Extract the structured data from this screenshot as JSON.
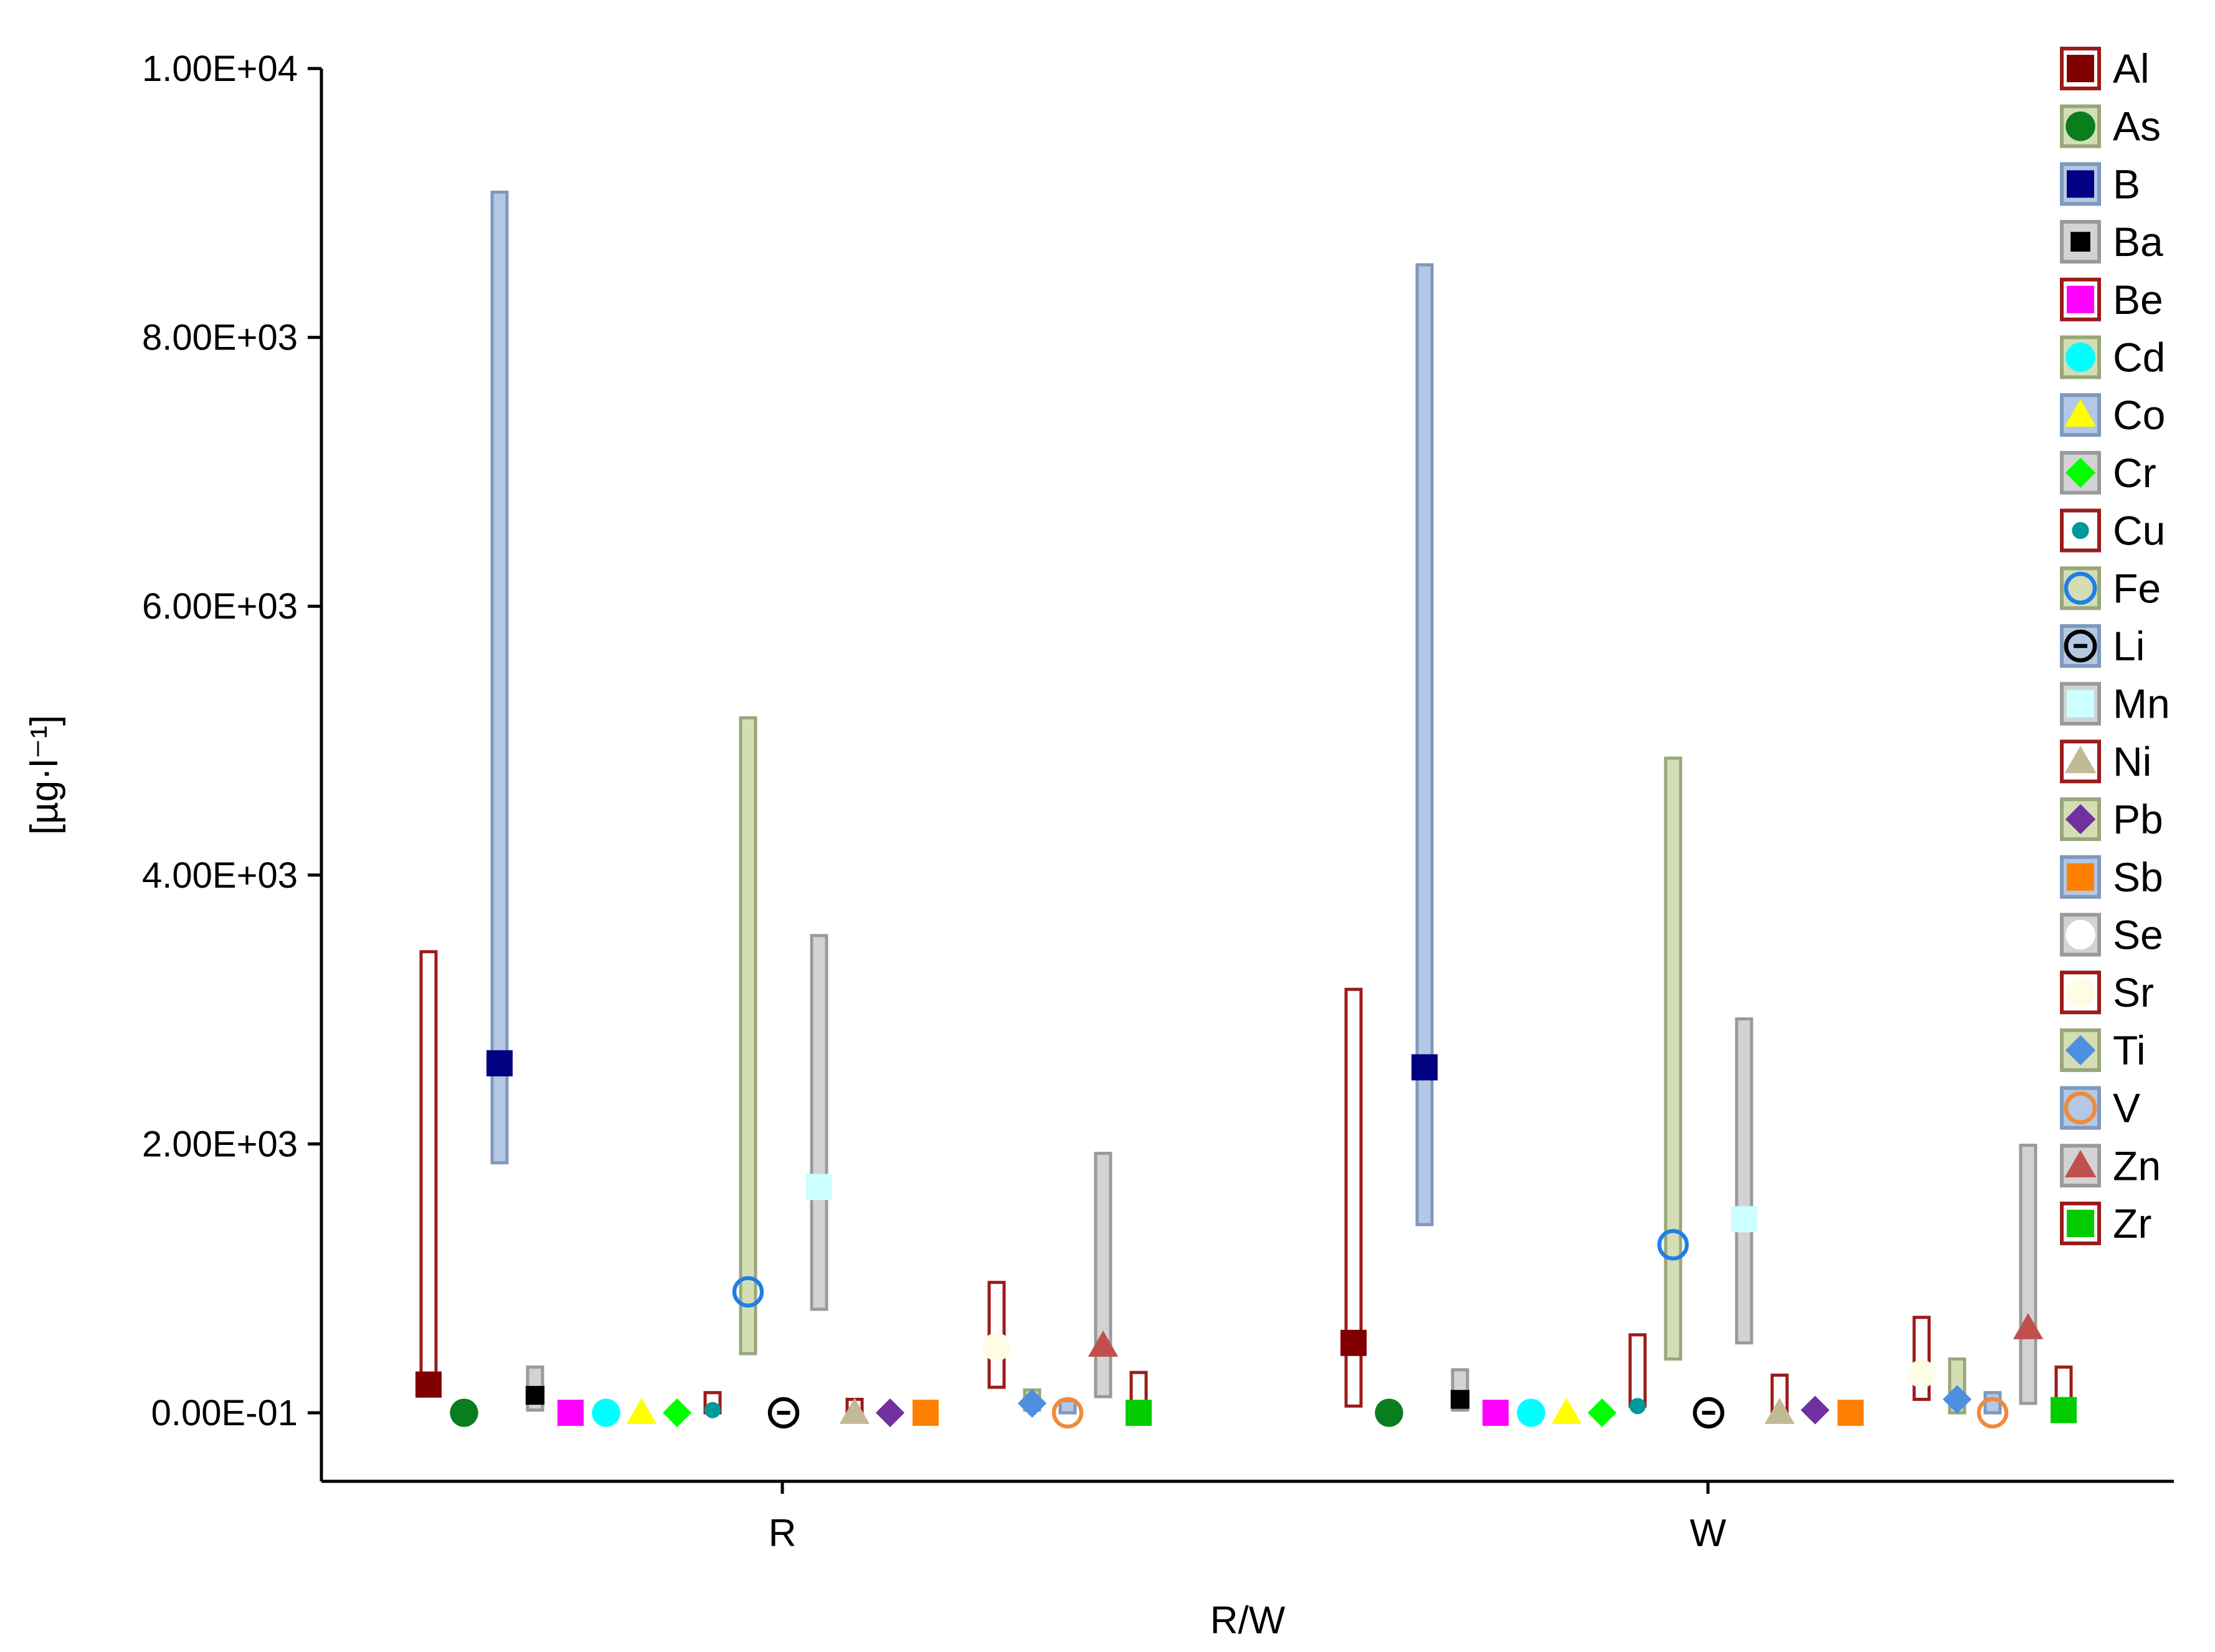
{
  "chart_data": {
    "type": "scatter",
    "subtype": "range-box with mean marker per element",
    "title": "",
    "xlabel": "R/W",
    "ylabel": "[µg·l⁻¹]",
    "ylim": [
      -500,
      10000
    ],
    "yticks": [
      {
        "value": 0,
        "label": "0.00E-01"
      },
      {
        "value": 2000,
        "label": "2.00E+03"
      },
      {
        "value": 4000,
        "label": "4.00E+03"
      },
      {
        "value": 6000,
        "label": "6.00E+03"
      },
      {
        "value": 8000,
        "label": "8.00E+03"
      },
      {
        "value": 10000,
        "label": "1.00E+04"
      }
    ],
    "categories": [
      "R",
      "W"
    ],
    "grid": false,
    "legend_position": "right",
    "series": [
      {
        "name": "Al",
        "marker": "square",
        "color": "#800000",
        "box_fill": "#ffffff",
        "box_stroke": "#9b1b1b",
        "values": [
          {
            "mean": 210,
            "min": 200,
            "max": 3430
          },
          {
            "mean": 520,
            "min": 50,
            "max": 3150
          }
        ]
      },
      {
        "name": "As",
        "marker": "circle",
        "color": "#0a7d1e",
        "box_fill": "#d3deb4",
        "box_stroke": "#97a77a",
        "values": [
          {
            "mean": 0,
            "min": 0,
            "max": 0
          },
          {
            "mean": 0,
            "min": 0,
            "max": 0
          }
        ]
      },
      {
        "name": "B",
        "marker": "square",
        "color": "#000080",
        "box_fill": "#b4c7e4",
        "box_stroke": "#7f98bd",
        "values": [
          {
            "mean": 2600,
            "min": 1860,
            "max": 9080
          },
          {
            "mean": 2570,
            "min": 1400,
            "max": 8540
          }
        ]
      },
      {
        "name": "Ba",
        "marker": "small-square",
        "color": "#000000",
        "box_fill": "#d3d3d3",
        "box_stroke": "#9a9a9a",
        "values": [
          {
            "mean": 130,
            "min": 20,
            "max": 340
          },
          {
            "mean": 100,
            "min": 20,
            "max": 320
          }
        ]
      },
      {
        "name": "Be",
        "marker": "square",
        "color": "#ff00ff",
        "box_fill": "#ffffff",
        "box_stroke": "#9b1b1b",
        "values": [
          {
            "mean": 0,
            "min": 0,
            "max": 0
          },
          {
            "mean": 0,
            "min": 0,
            "max": 0
          }
        ]
      },
      {
        "name": "Cd",
        "marker": "circle",
        "color": "#00ffff",
        "box_fill": "#d3deb4",
        "box_stroke": "#97a77a",
        "values": [
          {
            "mean": 0,
            "min": 0,
            "max": 0
          },
          {
            "mean": 0,
            "min": 0,
            "max": 0
          }
        ]
      },
      {
        "name": "Co",
        "marker": "triangle",
        "color": "#ffff00",
        "box_fill": "#b4c7e4",
        "box_stroke": "#7f98bd",
        "values": [
          {
            "mean": 0,
            "min": 0,
            "max": 0
          },
          {
            "mean": 0,
            "min": 0,
            "max": 0
          }
        ]
      },
      {
        "name": "Cr",
        "marker": "diamond",
        "color": "#00ff00",
        "box_fill": "#d3d3d3",
        "box_stroke": "#9a9a9a",
        "values": [
          {
            "mean": 0,
            "min": 0,
            "max": 0
          },
          {
            "mean": 0,
            "min": 0,
            "max": 0
          }
        ]
      },
      {
        "name": "Cu",
        "marker": "small-circle",
        "color": "#009999",
        "box_fill": "#ffffff",
        "box_stroke": "#9b1b1b",
        "values": [
          {
            "mean": 20,
            "min": 0,
            "max": 150
          },
          {
            "mean": 50,
            "min": 50,
            "max": 580
          }
        ]
      },
      {
        "name": "Fe",
        "marker": "open-circle",
        "color": "#1e7fe6",
        "box_fill": "#d3deb4",
        "box_stroke": "#97a77a",
        "values": [
          {
            "mean": 900,
            "min": 440,
            "max": 5170
          },
          {
            "mean": 1250,
            "min": 400,
            "max": 4870
          }
        ]
      },
      {
        "name": "Li",
        "marker": "open-circle-dash",
        "color": "#000000",
        "box_fill": "#b4c7e4",
        "box_stroke": "#7f98bd",
        "values": [
          {
            "mean": 0,
            "min": 0,
            "max": 0
          },
          {
            "mean": 0,
            "min": 0,
            "max": 0
          }
        ]
      },
      {
        "name": "Mn",
        "marker": "square",
        "color": "#ccffff",
        "box_fill": "#d3d3d3",
        "box_stroke": "#9a9a9a",
        "values": [
          {
            "mean": 1680,
            "min": 770,
            "max": 3550
          },
          {
            "mean": 1440,
            "min": 520,
            "max": 2930
          }
        ]
      },
      {
        "name": "Ni",
        "marker": "triangle",
        "color": "#c2b996",
        "box_fill": "#ffffff",
        "box_stroke": "#9b1b1b",
        "values": [
          {
            "mean": 0,
            "min": 0,
            "max": 100
          },
          {
            "mean": 0,
            "min": 0,
            "max": 280
          }
        ]
      },
      {
        "name": "Pb",
        "marker": "diamond",
        "color": "#7030a0",
        "box_fill": "#d3deb4",
        "box_stroke": "#97a77a",
        "values": [
          {
            "mean": 0,
            "min": 0,
            "max": 0
          },
          {
            "mean": 20,
            "min": 0,
            "max": 0
          }
        ]
      },
      {
        "name": "Sb",
        "marker": "square",
        "color": "#ff8000",
        "box_fill": "#b4c7e4",
        "box_stroke": "#7f98bd",
        "values": [
          {
            "mean": 0,
            "min": 0,
            "max": 0
          },
          {
            "mean": 0,
            "min": 0,
            "max": 0
          }
        ]
      },
      {
        "name": "Se",
        "marker": "circle",
        "color": "#ffffff",
        "box_fill": "#d3d3d3",
        "box_stroke": "#9a9a9a",
        "values": [
          {
            "mean": 0,
            "min": 0,
            "max": 0
          },
          {
            "mean": 0,
            "min": 0,
            "max": 0
          }
        ]
      },
      {
        "name": "Sr",
        "marker": "circle",
        "color": "#fdfde6",
        "box_fill": "#ffffff",
        "box_stroke": "#9b1b1b",
        "values": [
          {
            "mean": 490,
            "min": 190,
            "max": 970
          },
          {
            "mean": 290,
            "min": 100,
            "max": 710
          }
        ]
      },
      {
        "name": "Ti",
        "marker": "diamond",
        "color": "#4f8fe0",
        "box_fill": "#d3deb4",
        "box_stroke": "#97a77a",
        "values": [
          {
            "mean": 70,
            "min": 20,
            "max": 170
          },
          {
            "mean": 100,
            "min": 0,
            "max": 400
          }
        ]
      },
      {
        "name": "V",
        "marker": "open-circle",
        "color": "#f08a3c",
        "box_fill": "#b4c7e4",
        "box_stroke": "#7f98bd",
        "values": [
          {
            "mean": 0,
            "min": 0,
            "max": 90
          },
          {
            "mean": 0,
            "min": 0,
            "max": 150
          }
        ]
      },
      {
        "name": "Zn",
        "marker": "triangle",
        "color": "#c0504d",
        "box_fill": "#d3d3d3",
        "box_stroke": "#9a9a9a",
        "values": [
          {
            "mean": 500,
            "min": 120,
            "max": 1930
          },
          {
            "mean": 630,
            "min": 70,
            "max": 1990
          }
        ]
      },
      {
        "name": "Zr",
        "marker": "square",
        "color": "#00cc00",
        "box_fill": "#ffffff",
        "box_stroke": "#9b1b1b",
        "values": [
          {
            "mean": 0,
            "min": 0,
            "max": 300
          },
          {
            "mean": 20,
            "min": 20,
            "max": 340
          }
        ]
      }
    ]
  }
}
